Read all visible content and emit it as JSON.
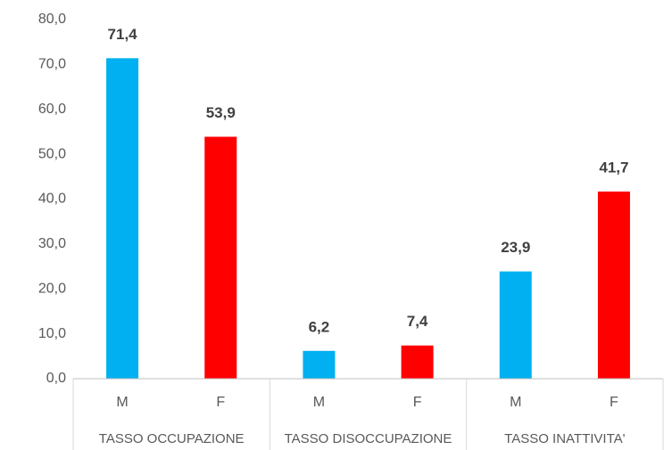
{
  "chart_data": {
    "type": "bar",
    "categories": [
      "M",
      "F",
      "M",
      "F",
      "M",
      "F"
    ],
    "category_groups": [
      "TASSO OCCUPAZIONE",
      "TASSO DISOCCUPAZIONE",
      "TASSO INATTIVITA'"
    ],
    "values": [
      71.4,
      53.9,
      6.2,
      7.4,
      23.9,
      41.7
    ],
    "value_labels": [
      "71,4",
      "53,9",
      "6,2",
      "7,4",
      "23,9",
      "41,7"
    ],
    "colors": [
      "#00b0f0",
      "#ff0000",
      "#00b0f0",
      "#ff0000",
      "#00b0f0",
      "#ff0000"
    ],
    "ylim": [
      0,
      80
    ],
    "yticks": [
      {
        "value": 0,
        "label": "0,0"
      },
      {
        "value": 10,
        "label": "10,0"
      },
      {
        "value": 20,
        "label": "20,0"
      },
      {
        "value": 30,
        "label": "30,0"
      },
      {
        "value": 40,
        "label": "40,0"
      },
      {
        "value": 50,
        "label": "50,0"
      },
      {
        "value": 60,
        "label": "60,0"
      },
      {
        "value": 70,
        "label": "70,0"
      },
      {
        "value": 80,
        "label": "80,0"
      }
    ],
    "grid": false
  }
}
